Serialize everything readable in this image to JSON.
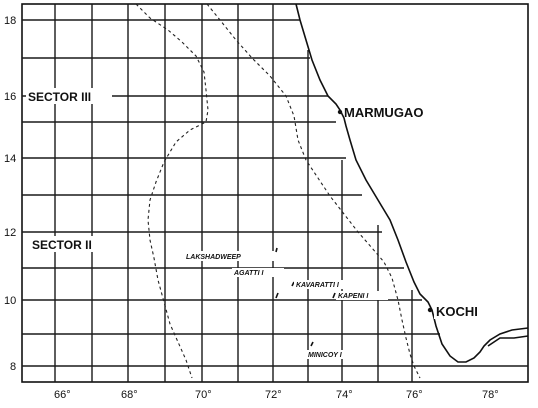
{
  "map": {
    "y_ticks": [
      "18",
      "16",
      "14",
      "12",
      "10",
      "8"
    ],
    "x_ticks": [
      "66°",
      "68°",
      "70°",
      "72°",
      "74°",
      "76°",
      "78°"
    ],
    "sectors": [
      {
        "label": "SECTOR III"
      },
      {
        "label": "SECTOR II"
      }
    ],
    "ports": [
      {
        "name": "MARMUGAO"
      },
      {
        "name": "KOCHI"
      }
    ],
    "islands": [
      {
        "name": "LAKSHADWEEP"
      },
      {
        "name": "AGATTI I"
      },
      {
        "name": "KAVARATTI I"
      },
      {
        "name": "KAPENI I"
      },
      {
        "name": "MINICOY I"
      }
    ]
  }
}
